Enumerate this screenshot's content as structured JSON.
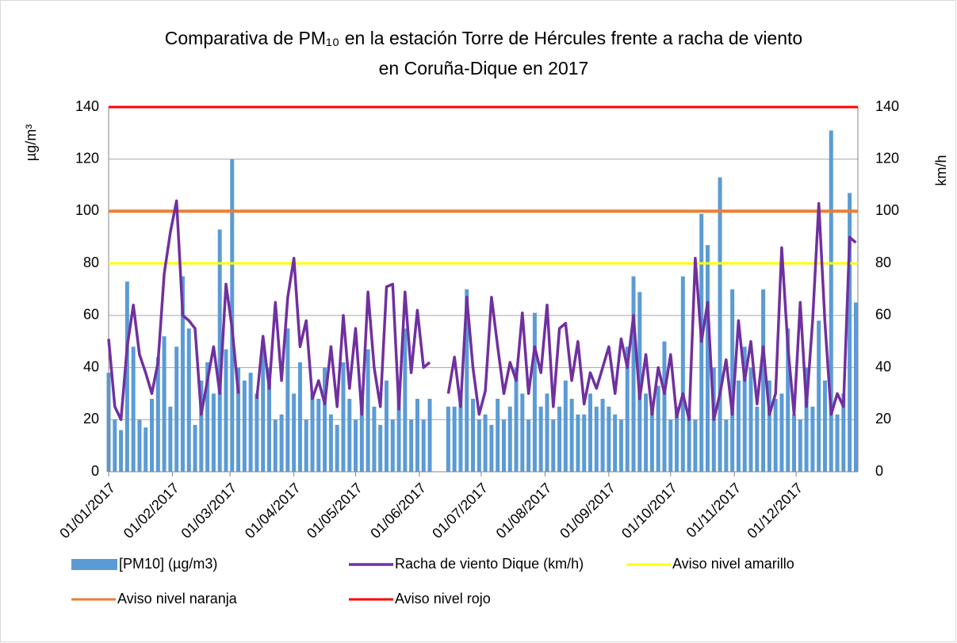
{
  "chart_data": {
    "type": "bar_line",
    "title": [
      "Comparativa de PM₁₀ en la estación Torre de Hércules frente a racha de viento",
      "en Coruña-Dique en 2017"
    ],
    "ylabel": "µg/m³",
    "y2label": "km/h",
    "xlim": [
      "01/01/2017",
      "31/12/2017"
    ],
    "xticks": [
      "01/01/2017",
      "01/02/2017",
      "01/03/2017",
      "01/04/2017",
      "01/05/2017",
      "01/06/2017",
      "01/07/2017",
      "01/08/2017",
      "01/09/2017",
      "01/10/2017",
      "01/11/2017",
      "01/12/2017"
    ],
    "ylim": [
      0,
      140
    ],
    "yticks": [
      0,
      20,
      40,
      60,
      80,
      100,
      120,
      140
    ],
    "y2lim": [
      0,
      140
    ],
    "y2ticks": [
      0,
      20,
      40,
      60,
      80,
      100,
      120,
      140
    ],
    "grid": true,
    "x": [
      "01/01/2017",
      "04/01/2017",
      "07/01/2017",
      "10/01/2017",
      "13/01/2017",
      "16/01/2017",
      "19/01/2017",
      "22/01/2017",
      "25/01/2017",
      "28/01/2017",
      "31/01/2017",
      "03/02/2017",
      "06/02/2017",
      "09/02/2017",
      "12/02/2017",
      "15/02/2017",
      "18/02/2017",
      "21/02/2017",
      "24/02/2017",
      "27/02/2017",
      "02/03/2017",
      "05/03/2017",
      "08/03/2017",
      "11/03/2017",
      "14/03/2017",
      "17/03/2017",
      "20/03/2017",
      "23/03/2017",
      "26/03/2017",
      "29/03/2017",
      "01/04/2017",
      "04/04/2017",
      "07/04/2017",
      "10/04/2017",
      "13/04/2017",
      "16/04/2017",
      "19/04/2017",
      "22/04/2017",
      "25/04/2017",
      "28/04/2017",
      "01/05/2017",
      "04/05/2017",
      "07/05/2017",
      "10/05/2017",
      "13/05/2017",
      "16/05/2017",
      "19/05/2017",
      "22/05/2017",
      "25/05/2017",
      "28/05/2017",
      "31/05/2017",
      "03/06/2017",
      "06/06/2017",
      "09/06/2017",
      "12/06/2017",
      "15/06/2017",
      "18/06/2017",
      "21/06/2017",
      "24/06/2017",
      "27/06/2017",
      "30/06/2017",
      "03/07/2017",
      "06/07/2017",
      "09/07/2017",
      "12/07/2017",
      "15/07/2017",
      "18/07/2017",
      "21/07/2017",
      "24/07/2017",
      "27/07/2017",
      "30/07/2017",
      "02/08/2017",
      "05/08/2017",
      "08/08/2017",
      "11/08/2017",
      "14/08/2017",
      "17/08/2017",
      "20/08/2017",
      "23/08/2017",
      "26/08/2017",
      "29/08/2017",
      "01/09/2017",
      "04/09/2017",
      "07/09/2017",
      "10/09/2017",
      "13/09/2017",
      "16/09/2017",
      "19/09/2017",
      "22/09/2017",
      "25/09/2017",
      "28/09/2017",
      "01/10/2017",
      "04/10/2017",
      "07/10/2017",
      "10/10/2017",
      "13/10/2017",
      "16/10/2017",
      "19/10/2017",
      "22/10/2017",
      "25/10/2017",
      "28/10/2017",
      "31/10/2017",
      "03/11/2017",
      "06/11/2017",
      "09/11/2017",
      "12/11/2017",
      "15/11/2017",
      "18/11/2017",
      "21/11/2017",
      "24/11/2017",
      "27/11/2017",
      "30/11/2017",
      "03/12/2017",
      "06/12/2017",
      "09/12/2017",
      "12/12/2017",
      "15/12/2017",
      "18/12/2017",
      "21/12/2017",
      "24/12/2017",
      "27/12/2017",
      "30/12/2017"
    ],
    "series": [
      {
        "name": "[PM10] (µg/m3)",
        "kind": "bar",
        "axis": "y",
        "color": "#5b9bd5",
        "values": [
          38,
          20,
          16,
          73,
          48,
          20,
          17,
          28,
          44,
          52,
          25,
          48,
          75,
          55,
          18,
          35,
          42,
          30,
          93,
          47,
          120,
          40,
          35,
          38,
          30,
          50,
          40,
          20,
          22,
          55,
          30,
          42,
          20,
          30,
          28,
          40,
          22,
          18,
          42,
          28,
          20,
          30,
          47,
          25,
          18,
          35,
          20,
          30,
          55,
          20,
          28,
          20,
          28,
          null,
          null,
          25,
          25,
          30,
          70,
          28,
          20,
          22,
          18,
          28,
          20,
          25,
          40,
          30,
          20,
          61,
          25,
          30,
          20,
          25,
          35,
          28,
          22,
          22,
          30,
          25,
          28,
          25,
          22,
          20,
          48,
          75,
          69,
          30,
          24,
          33,
          50,
          20,
          25,
          75,
          22,
          20,
          99,
          87,
          40,
          113,
          20,
          70,
          35,
          48,
          40,
          25,
          70,
          35,
          28,
          30,
          55,
          22,
          20,
          40,
          25,
          58,
          35,
          131,
          22,
          30,
          107,
          65
        ]
      },
      {
        "name": "Racha de viento Dique (km/h)",
        "kind": "line",
        "axis": "y2",
        "color": "#7030a0",
        "values": [
          51,
          25,
          20,
          48,
          64,
          45,
          38,
          30,
          42,
          76,
          92,
          104,
          60,
          58,
          55,
          22,
          35,
          48,
          30,
          72,
          55,
          30,
          null,
          null,
          28,
          52,
          32,
          65,
          35,
          67,
          82,
          48,
          58,
          28,
          35,
          26,
          48,
          25,
          60,
          32,
          55,
          22,
          69,
          40,
          25,
          71,
          72,
          24,
          69,
          38,
          62,
          40,
          42,
          null,
          null,
          30,
          44,
          25,
          67,
          40,
          22,
          31,
          67,
          48,
          30,
          42,
          35,
          61,
          30,
          48,
          38,
          64,
          25,
          55,
          57,
          35,
          50,
          26,
          38,
          32,
          40,
          48,
          30,
          51,
          40,
          60,
          28,
          45,
          22,
          40,
          30,
          45,
          21,
          30,
          20,
          82,
          50,
          65,
          20,
          30,
          43,
          22,
          58,
          35,
          50,
          26,
          48,
          22,
          30,
          86,
          48,
          22,
          65,
          25,
          58,
          103,
          57,
          22,
          30,
          25,
          90,
          88
        ]
      }
    ],
    "thresholds": [
      {
        "name": "Aviso nivel amarillo",
        "color": "#ffff00",
        "value": 80,
        "axis": "y2"
      },
      {
        "name": "Aviso nivel naranja",
        "color": "#ed7d31",
        "value": 100,
        "axis": "y2"
      },
      {
        "name": "Aviso nivel rojo",
        "color": "#ff0000",
        "value": 140,
        "axis": "y2"
      }
    ]
  }
}
